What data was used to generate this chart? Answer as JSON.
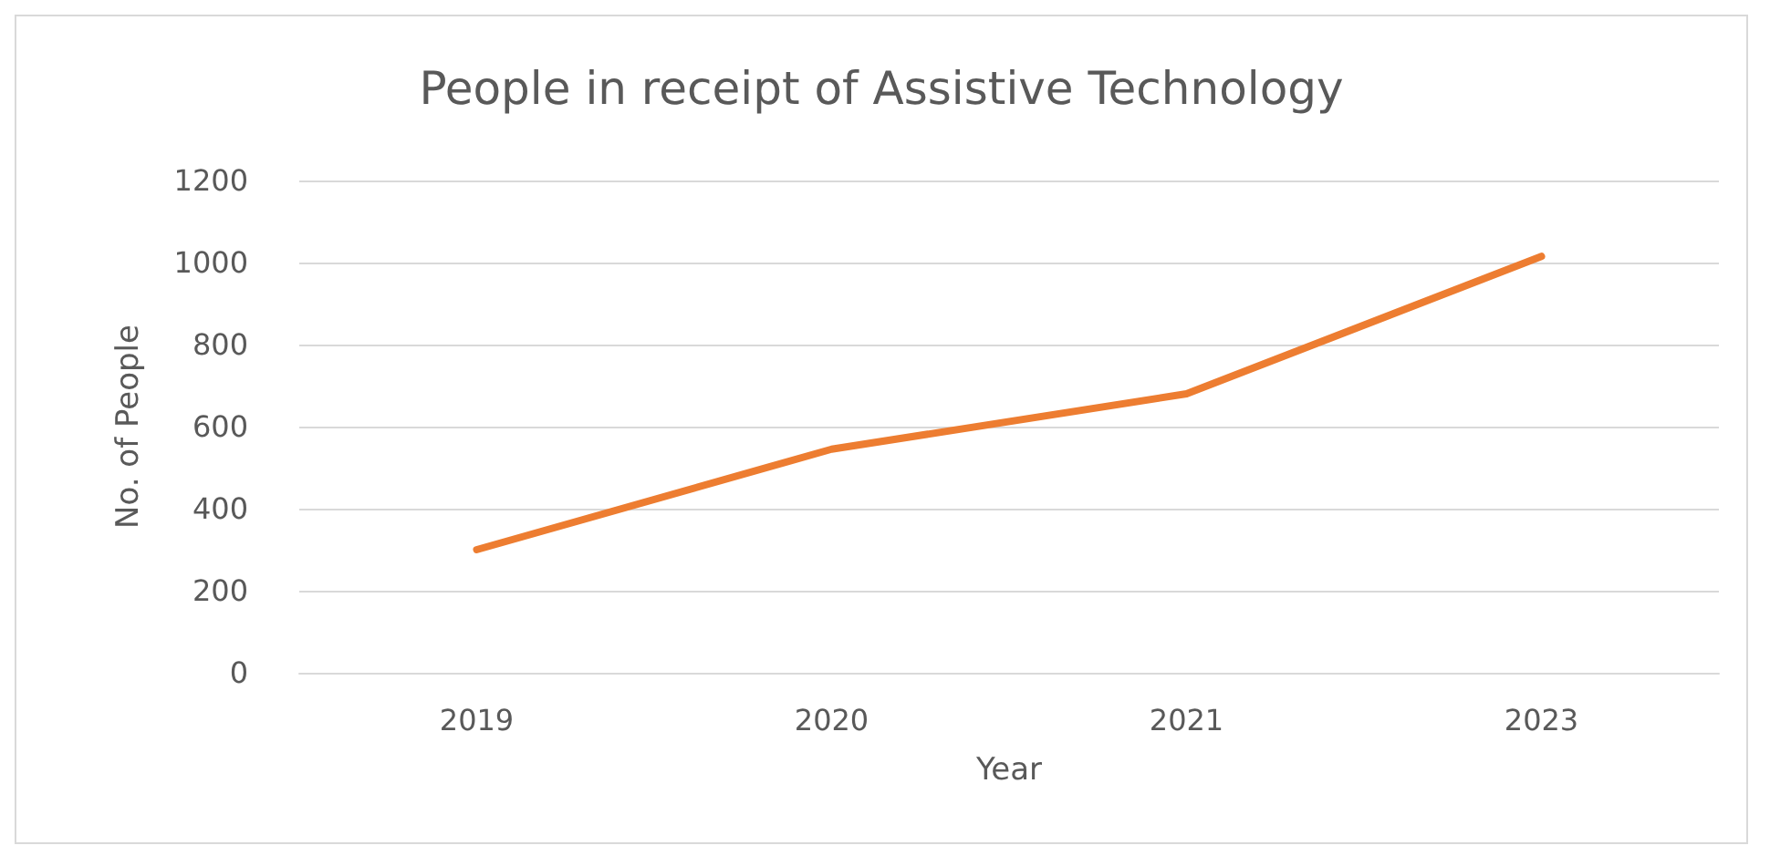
{
  "chart_data": {
    "type": "line",
    "title": "People in receipt of Assistive Technology",
    "xlabel": "Year",
    "ylabel": "No. of People",
    "categories": [
      "2019",
      "2020",
      "2021",
      "2023"
    ],
    "series": [
      {
        "color": "#ed7d31",
        "values": [
          300,
          545,
          680,
          1015
        ]
      }
    ],
    "ylim": [
      0,
      1200
    ],
    "yticks": [
      0,
      200,
      400,
      600,
      800,
      1000,
      1200
    ],
    "grid": "y",
    "marker": "none",
    "line_style": "solid"
  }
}
